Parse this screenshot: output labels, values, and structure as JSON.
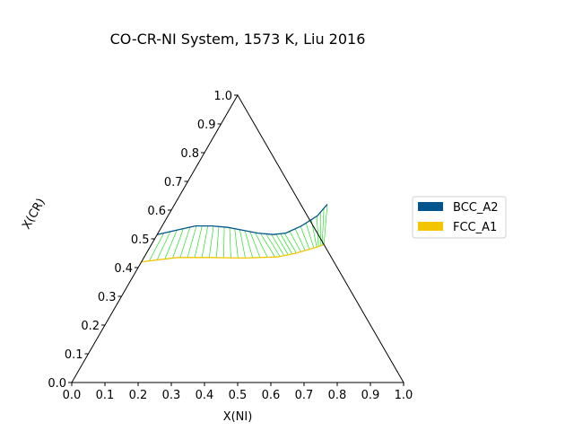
{
  "chart_data": {
    "type": "scatter",
    "subtype": "ternary-phase-diagram",
    "title": "CO-CR-NI System, 1573 K, Liu 2016",
    "xlabel": "X(NI)",
    "ylabel": "X(CR)",
    "xlim": [
      0,
      1
    ],
    "ylim": [
      0,
      1
    ],
    "ticks": [
      "0.0",
      "0.1",
      "0.2",
      "0.3",
      "0.4",
      "0.5",
      "0.6",
      "0.7",
      "0.8",
      "0.9",
      "1.0"
    ],
    "tick_values": [
      0.0,
      0.1,
      0.2,
      0.3,
      0.4,
      0.5,
      0.6,
      0.7,
      0.8,
      0.9,
      1.0
    ],
    "legend_position": "right",
    "grid": false,
    "series": [
      {
        "name": "BCC_A2",
        "color": "#00568c",
        "points": [
          [
            0.0,
            0.515
          ],
          [
            0.05,
            0.53
          ],
          [
            0.1,
            0.545
          ],
          [
            0.15,
            0.545
          ],
          [
            0.2,
            0.54
          ],
          [
            0.25,
            0.53
          ],
          [
            0.3,
            0.52
          ],
          [
            0.35,
            0.515
          ],
          [
            0.385,
            0.52
          ],
          [
            0.42,
            0.545
          ],
          [
            0.45,
            0.58
          ],
          [
            0.46,
            0.62
          ]
        ]
      },
      {
        "name": "FCC_A1",
        "color": "#f2c500",
        "points": [
          [
            0.0,
            0.42
          ],
          [
            0.1,
            0.435
          ],
          [
            0.2,
            0.435
          ],
          [
            0.3,
            0.433
          ],
          [
            0.4,
            0.437
          ],
          [
            0.45,
            0.45
          ],
          [
            0.5,
            0.47
          ],
          [
            0.52,
            0.48
          ]
        ]
      }
    ],
    "tieline_color": "#00e000",
    "tieline_count": 32
  }
}
